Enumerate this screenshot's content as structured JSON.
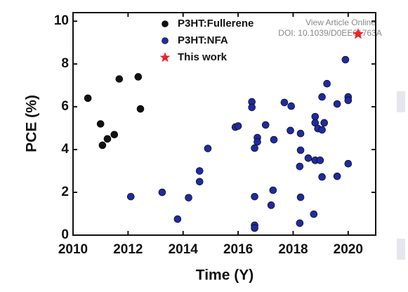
{
  "chart_data": {
    "type": "scatter",
    "x_label": "Time (Y)",
    "y_label": "PCE (%)",
    "xlim": [
      2010,
      2021
    ],
    "xticks": [
      2010,
      2012,
      2014,
      2016,
      2018,
      2020
    ],
    "ylim": [
      0,
      10.4
    ],
    "yticks": [
      0,
      2,
      4,
      6,
      8,
      10
    ],
    "legend": "top",
    "annotations": [
      "View Article Online",
      "DOI: 10.1039/D0EE01763A"
    ],
    "series": [
      {
        "name": "P3HT:Fullerene",
        "color": "#111111",
        "marker": "circle",
        "x": [
          2010.54,
          2011.0,
          2011.07,
          2011.25,
          2011.5,
          2011.68,
          2012.37,
          2012.45
        ],
        "values": [
          6.4,
          5.2,
          4.2,
          4.5,
          4.7,
          7.3,
          7.4,
          5.9
        ]
      },
      {
        "name": "P3HT:NFA",
        "color": "#1f2aa0",
        "marker": "circle",
        "x": [
          2012.1,
          2013.24,
          2014.2,
          2013.8,
          2014.6,
          2014.6,
          2014.9,
          2015.9,
          2016.0,
          2016.5,
          2016.5,
          2016.6,
          2016.7,
          2016.7,
          2016.6,
          2016.6,
          2016.6,
          2017.0,
          2017.27,
          2017.2,
          2017.3,
          2017.68,
          2017.93,
          2017.9,
          2018.27,
          2018.27,
          2018.24,
          2018.27,
          2018.24,
          2018.55,
          2018.8,
          2018.98,
          2018.8,
          2018.8,
          2018.9,
          2019.05,
          2019.05,
          2019.13,
          2019.23,
          2019.05,
          2018.75,
          2019.6,
          2019.6,
          2019.9,
          2020.0,
          2020.0,
          2020.0
        ],
        "values": [
          1.8,
          2.0,
          1.75,
          0.75,
          3.0,
          2.5,
          4.05,
          5.05,
          5.1,
          6.23,
          5.97,
          4.07,
          4.56,
          4.36,
          1.8,
          0.46,
          0.33,
          5.15,
          2.1,
          1.4,
          4.46,
          6.2,
          6.03,
          4.89,
          4.75,
          3.97,
          3.21,
          1.77,
          0.56,
          3.6,
          3.5,
          3.5,
          5.54,
          5.25,
          4.98,
          4.92,
          6.46,
          5.25,
          7.08,
          2.72,
          0.98,
          6.13,
          2.75,
          8.2,
          6.46,
          6.3,
          3.34
        ]
      },
      {
        "name": "This work",
        "color": "#e8242a",
        "marker": "star",
        "x": [
          2020.36
        ],
        "values": [
          9.4
        ]
      }
    ]
  }
}
